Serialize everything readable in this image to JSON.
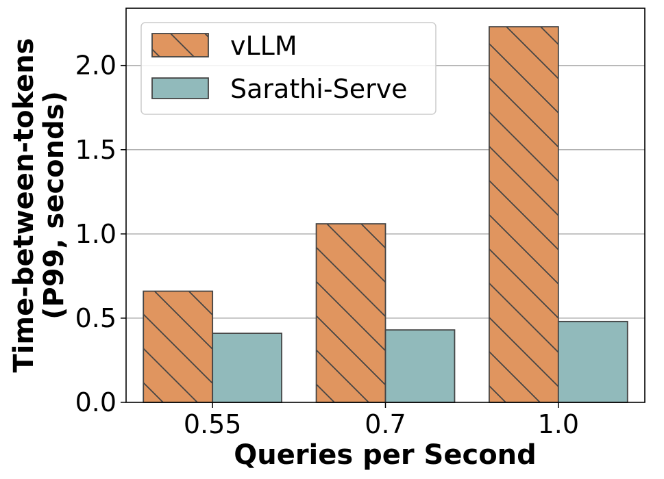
{
  "chart_data": {
    "type": "bar",
    "categories": [
      "0.55",
      "0.7",
      "1.0"
    ],
    "series": [
      {
        "name": "vLLM",
        "values": [
          0.66,
          1.06,
          2.23
        ],
        "color": "#E0955F",
        "hatch": true
      },
      {
        "name": "Sarathi-Serve",
        "values": [
          0.41,
          0.43,
          0.48
        ],
        "color": "#91BABB",
        "hatch": false
      }
    ],
    "xlabel": "Queries per Second",
    "ylabel_line1": "Time-between-tokens",
    "ylabel_line2": "(P99, seconds)",
    "ylim": [
      0,
      2.34
    ],
    "yticks": [
      "0.0",
      "0.5",
      "1.0",
      "1.5",
      "2.0"
    ],
    "ytick_values": [
      0,
      0.5,
      1.0,
      1.5,
      2.0
    ],
    "grid": true,
    "legend_position": "top-left"
  }
}
